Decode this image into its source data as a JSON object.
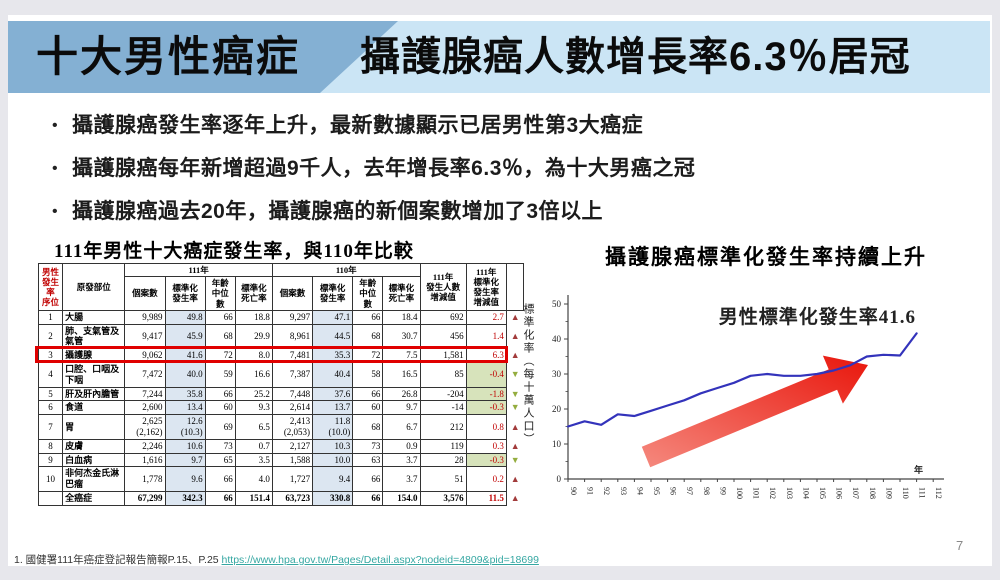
{
  "header": {
    "left_title": "十大男性癌症",
    "right_title": "攝護腺癌人數增長率6.3％居冠"
  },
  "bullets": [
    "攝護腺癌發生率逐年上升，最新數據顯示已居男性第3大癌症",
    "攝護腺癌每年新增超過9千人，去年增長率6.3％，為十大男癌之冠",
    "攝護腺癌過去20年，攝護腺癌的新個案數增加了3倍以上"
  ],
  "table": {
    "title": "111年男性十大癌症發生率，與110年比較",
    "headers": {
      "seq": "男性\n發生率\n序位",
      "site": "原發部位",
      "year111": "111年",
      "year110": "110年",
      "cases": "個案數",
      "std_rate": "標準化\n發生率",
      "median_age": "年齡\n中位數",
      "std_death": "標準化\n死亡率",
      "count_change": "111年\n發生人數\n增減值",
      "rate_change": "111年\n標準化\n發生率\n增減值"
    },
    "arrow_up_glyph": "▲",
    "arrow_down_glyph": "▼",
    "rows": [
      {
        "seq": "1",
        "site": "大腸",
        "y111": {
          "cases": "9,989",
          "rate": "49.8",
          "age": "66",
          "death": "18.8"
        },
        "y110": {
          "cases": "9,297",
          "rate": "47.1",
          "age": "66",
          "death": "18.4"
        },
        "count_change": "692",
        "rate_change": "2.7",
        "direction": "up"
      },
      {
        "seq": "2",
        "site": "肺、支氣管及氣管",
        "y111": {
          "cases": "9,417",
          "rate": "45.9",
          "age": "68",
          "death": "29.9"
        },
        "y110": {
          "cases": "8,961",
          "rate": "44.5",
          "age": "68",
          "death": "30.7"
        },
        "count_change": "456",
        "rate_change": "1.4",
        "direction": "up"
      },
      {
        "seq": "3",
        "site": "攝護腺",
        "y111": {
          "cases": "9,062",
          "rate": "41.6",
          "age": "72",
          "death": "8.0"
        },
        "y110": {
          "cases": "7,481",
          "rate": "35.3",
          "age": "72",
          "death": "7.5"
        },
        "count_change": "1,581",
        "rate_change": "6.3",
        "direction": "up",
        "highlight": true
      },
      {
        "seq": "4",
        "site": "口腔、口咽及下咽",
        "y111": {
          "cases": "7,472",
          "rate": "40.0",
          "age": "59",
          "death": "16.6"
        },
        "y110": {
          "cases": "7,387",
          "rate": "40.4",
          "age": "58",
          "death": "16.5"
        },
        "count_change": "85",
        "rate_change": "-0.4",
        "direction": "down",
        "change_negative": true
      },
      {
        "seq": "5",
        "site": "肝及肝內膽管",
        "y111": {
          "cases": "7,244",
          "rate": "35.8",
          "age": "66",
          "death": "25.2"
        },
        "y110": {
          "cases": "7,448",
          "rate": "37.6",
          "age": "66",
          "death": "26.8"
        },
        "count_change": "-204",
        "rate_change": "-1.8",
        "direction": "down",
        "change_negative": true
      },
      {
        "seq": "6",
        "site": "食道",
        "y111": {
          "cases": "2,600",
          "rate": "13.4",
          "age": "60",
          "death": "9.3"
        },
        "y110": {
          "cases": "2,614",
          "rate": "13.7",
          "age": "60",
          "death": "9.7"
        },
        "count_change": "-14",
        "rate_change": "-0.3",
        "direction": "down",
        "change_negative": true
      },
      {
        "seq": "7",
        "site": "胃",
        "y111": {
          "cases": "2,625\n(2,162)",
          "rate": "12.6\n(10.3)",
          "age": "69",
          "death": "6.5"
        },
        "y110": {
          "cases": "2,413\n(2,053)",
          "rate": "11.8\n(10.0)",
          "age": "68",
          "death": "6.7"
        },
        "count_change": "212",
        "rate_change": "0.8",
        "direction": "up"
      },
      {
        "seq": "8",
        "site": "皮膚",
        "y111": {
          "cases": "2,246",
          "rate": "10.6",
          "age": "73",
          "death": "0.7"
        },
        "y110": {
          "cases": "2,127",
          "rate": "10.3",
          "age": "73",
          "death": "0.9"
        },
        "count_change": "119",
        "rate_change": "0.3",
        "direction": "up"
      },
      {
        "seq": "9",
        "site": "白血病",
        "y111": {
          "cases": "1,616",
          "rate": "9.7",
          "age": "65",
          "death": "3.5"
        },
        "y110": {
          "cases": "1,588",
          "rate": "10.0",
          "age": "63",
          "death": "3.7"
        },
        "count_change": "28",
        "rate_change": "-0.3",
        "direction": "down",
        "change_negative": true
      },
      {
        "seq": "10",
        "site": "非何杰金氏淋巴瘤",
        "y111": {
          "cases": "1,778",
          "rate": "9.6",
          "age": "66",
          "death": "4.0"
        },
        "y110": {
          "cases": "1,727",
          "rate": "9.4",
          "age": "66",
          "death": "3.7"
        },
        "count_change": "51",
        "rate_change": "0.2",
        "direction": "up"
      },
      {
        "seq": "",
        "site": "全癌症",
        "y111": {
          "cases": "67,299",
          "rate": "342.3",
          "age": "66",
          "death": "151.4"
        },
        "y110": {
          "cases": "63,723",
          "rate": "330.8",
          "age": "66",
          "death": "154.0"
        },
        "count_change": "3,576",
        "rate_change": "11.5",
        "direction": "up",
        "total": true
      }
    ]
  },
  "chart_data": {
    "type": "line",
    "title": "攝護腺癌標準化發生率持續上升",
    "annotation": "男性標準化發生率41.6",
    "ylabel": "標準化率（每十萬人口）",
    "xlabel": "年",
    "ylim": [
      0,
      50
    ],
    "y_ticks": [
      0,
      10,
      20,
      30,
      40,
      50
    ],
    "x_ticks": [
      "90",
      "91",
      "92",
      "93",
      "94",
      "95",
      "96",
      "97",
      "98",
      "99",
      "100",
      "101",
      "102",
      "103",
      "104",
      "105",
      "106",
      "107",
      "108",
      "109",
      "110",
      "111",
      "112"
    ],
    "x": [
      90,
      91,
      92,
      93,
      94,
      95,
      96,
      97,
      98,
      99,
      100,
      101,
      102,
      103,
      104,
      105,
      106,
      107,
      108,
      109,
      110,
      111
    ],
    "values": [
      15,
      16.5,
      15.5,
      18.5,
      18,
      19.5,
      21,
      22.5,
      24.5,
      26,
      27.5,
      29.5,
      30,
      29.5,
      29.5,
      30,
      31,
      32.5,
      35,
      35.5,
      35.3,
      41.6
    ],
    "series_name": "男性標準化發生率",
    "line_color": "#3333bb",
    "trend_arrow_colors": [
      "#f5897e",
      "#e9160c"
    ]
  },
  "footnote": {
    "prefix": "1. 國健署111年癌症登記報告簡報P.15、P.25 ",
    "link": "https://www.hpa.gov.tw/Pages/Detail.aspx?nodeid=4809&pid=18699"
  },
  "page_number": "7",
  "colors": {
    "header_dark_blue": "#84b0d3",
    "header_light_blue": "#cbe5f5",
    "table_shade_blue": "#dce6f1",
    "table_negative_green": "#d7e3bb",
    "change_text_red": "#c00000",
    "highlight_box_red": "#e00000",
    "up_arrow": "#a23b3b",
    "down_arrow": "#94ad3f",
    "link_teal": "#35a7a2"
  }
}
